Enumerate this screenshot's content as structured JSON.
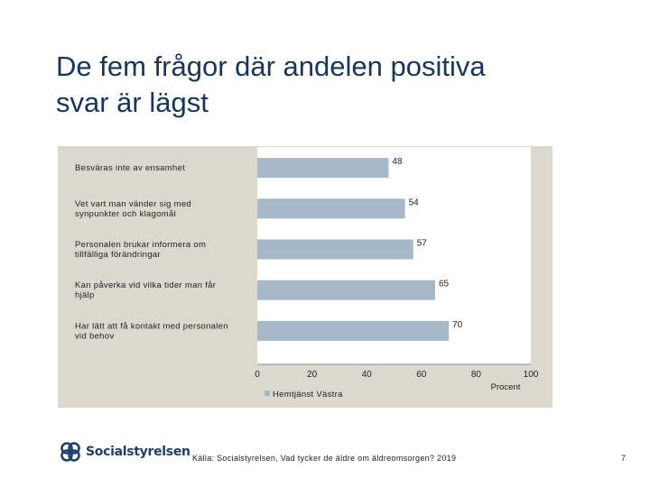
{
  "slide": {
    "title_line1": "De fem frågor där andelen positiva",
    "title_line2": "svar är lägst",
    "source": "Källa: Socialstyrelsen, Vad tycker de äldre om äldreomsorgen? 2019",
    "page_number": "7",
    "logo_text": "Socialstyrelsen"
  },
  "chart_data": {
    "type": "bar",
    "orientation": "horizontal",
    "categories": [
      [
        "Besväras inte av ensamhet"
      ],
      [
        "Vet vart man vänder sig med",
        "synpunkter och klagomål"
      ],
      [
        "Personalen brukar informera om",
        "tillfälliga förändringar"
      ],
      [
        "Kan påverka vid vilka tider man får",
        "hjälp"
      ],
      [
        "Har lätt att få kontakt med personalen",
        "vid behov"
      ]
    ],
    "series": [
      {
        "name": "Hemtjänst Västra",
        "values": [
          48,
          54,
          57,
          65,
          70
        ],
        "color": "#a6b8c7"
      }
    ],
    "xlim": [
      0,
      100
    ],
    "xticks": [
      0,
      20,
      40,
      60,
      80,
      100
    ],
    "xlabel": "Procent",
    "legend_position": "bottom-left",
    "grid": false
  }
}
